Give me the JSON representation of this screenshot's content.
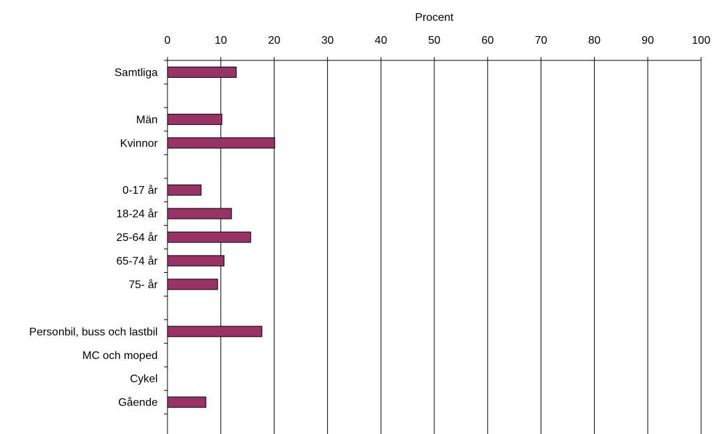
{
  "chart_data": {
    "type": "bar",
    "orientation": "horizontal",
    "xlabel": "Procent",
    "xaxis_position": "top",
    "xlim": [
      0,
      100
    ],
    "xticks": [
      "0",
      "10",
      "20",
      "30",
      "40",
      "50",
      "60",
      "70",
      "80",
      "90",
      "100"
    ],
    "grid": "vertical",
    "legend": "none",
    "bar_color": "#993366",
    "categories": [
      "Samtliga",
      "",
      "Män",
      "Kvinnor",
      "",
      "0-17 år",
      "18-24 år",
      "25-64 år",
      "65-74 år",
      "75- år",
      "",
      "Personbil, buss och lastbil",
      "MC och moped",
      "Cykel",
      "Gående"
    ],
    "values": [
      12.9,
      null,
      10.2,
      20.1,
      null,
      6.3,
      12.0,
      15.6,
      10.6,
      9.4,
      null,
      17.7,
      null,
      null,
      7.2
    ]
  }
}
